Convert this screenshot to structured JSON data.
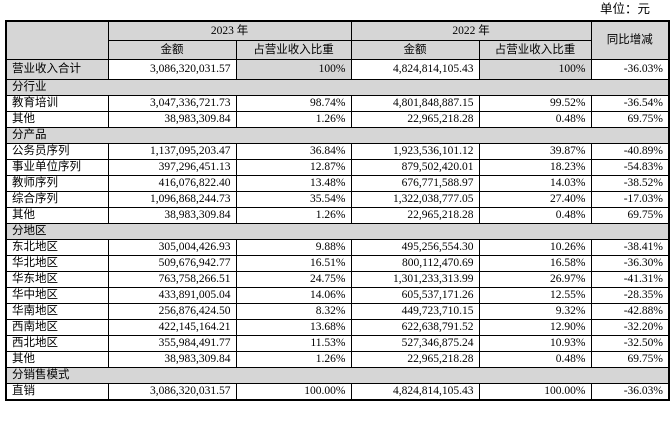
{
  "unit_label": "单位：元",
  "colors": {
    "header_bg": "#d6d6d6",
    "border": "#000000",
    "page_bg": "#ffffff"
  },
  "table": {
    "header": {
      "year_2023": "2023 年",
      "year_2022": "2022 年",
      "yoy": "同比增减",
      "amount_2023": "金额",
      "ratio_2023": "占营业收入比重",
      "amount_2022": "金额",
      "ratio_2022": "占营业收入比重"
    },
    "total_row": {
      "label": "营业收入合计",
      "cells": [
        "3,086,320,031.57",
        "100%",
        "4,824,814,105.43",
        "100%",
        "-36.03%"
      ]
    },
    "sections": [
      {
        "title": "分行业",
        "rows": [
          {
            "label": "教育培训",
            "cells": [
              "3,047,336,721.73",
              "98.74%",
              "4,801,848,887.15",
              "99.52%",
              "-36.54%"
            ]
          },
          {
            "label": "其他",
            "cells": [
              "38,983,309.84",
              "1.26%",
              "22,965,218.28",
              "0.48%",
              "69.75%"
            ]
          }
        ]
      },
      {
        "title": "分产品",
        "rows": [
          {
            "label": "公务员序列",
            "cells": [
              "1,137,095,203.47",
              "36.84%",
              "1,923,536,101.12",
              "39.87%",
              "-40.89%"
            ]
          },
          {
            "label": "事业单位序列",
            "cells": [
              "397,296,451.13",
              "12.87%",
              "879,502,420.01",
              "18.23%",
              "-54.83%"
            ]
          },
          {
            "label": "教师序列",
            "cells": [
              "416,076,822.40",
              "13.48%",
              "676,771,588.97",
              "14.03%",
              "-38.52%"
            ]
          },
          {
            "label": "综合序列",
            "cells": [
              "1,096,868,244.73",
              "35.54%",
              "1,322,038,777.05",
              "27.40%",
              "-17.03%"
            ]
          },
          {
            "label": "其他",
            "cells": [
              "38,983,309.84",
              "1.26%",
              "22,965,218.28",
              "0.48%",
              "69.75%"
            ]
          }
        ]
      },
      {
        "title": "分地区",
        "rows": [
          {
            "label": "东北地区",
            "cells": [
              "305,004,426.93",
              "9.88%",
              "495,256,554.30",
              "10.26%",
              "-38.41%"
            ]
          },
          {
            "label": "华北地区",
            "cells": [
              "509,676,942.77",
              "16.51%",
              "800,112,470.69",
              "16.58%",
              "-36.30%"
            ]
          },
          {
            "label": "华东地区",
            "cells": [
              "763,758,266.51",
              "24.75%",
              "1,301,233,313.99",
              "26.97%",
              "-41.31%"
            ]
          },
          {
            "label": "华中地区",
            "cells": [
              "433,891,005.04",
              "14.06%",
              "605,537,171.26",
              "12.55%",
              "-28.35%"
            ]
          },
          {
            "label": "华南地区",
            "cells": [
              "256,876,424.50",
              "8.32%",
              "449,723,710.15",
              "9.32%",
              "-42.88%"
            ]
          },
          {
            "label": "西南地区",
            "cells": [
              "422,145,164.21",
              "13.68%",
              "622,638,791.52",
              "12.90%",
              "-32.20%"
            ]
          },
          {
            "label": "西北地区",
            "cells": [
              "355,984,491.77",
              "11.53%",
              "527,346,875.24",
              "10.93%",
              "-32.50%"
            ]
          },
          {
            "label": "其他",
            "cells": [
              "38,983,309.84",
              "1.26%",
              "22,965,218.28",
              "0.48%",
              "69.75%"
            ]
          }
        ]
      },
      {
        "title": "分销售模式",
        "rows": [
          {
            "label": "直销",
            "cells": [
              "3,086,320,031.57",
              "100.00%",
              "4,824,814,105.43",
              "100.00%",
              "-36.03%"
            ]
          }
        ]
      }
    ]
  }
}
